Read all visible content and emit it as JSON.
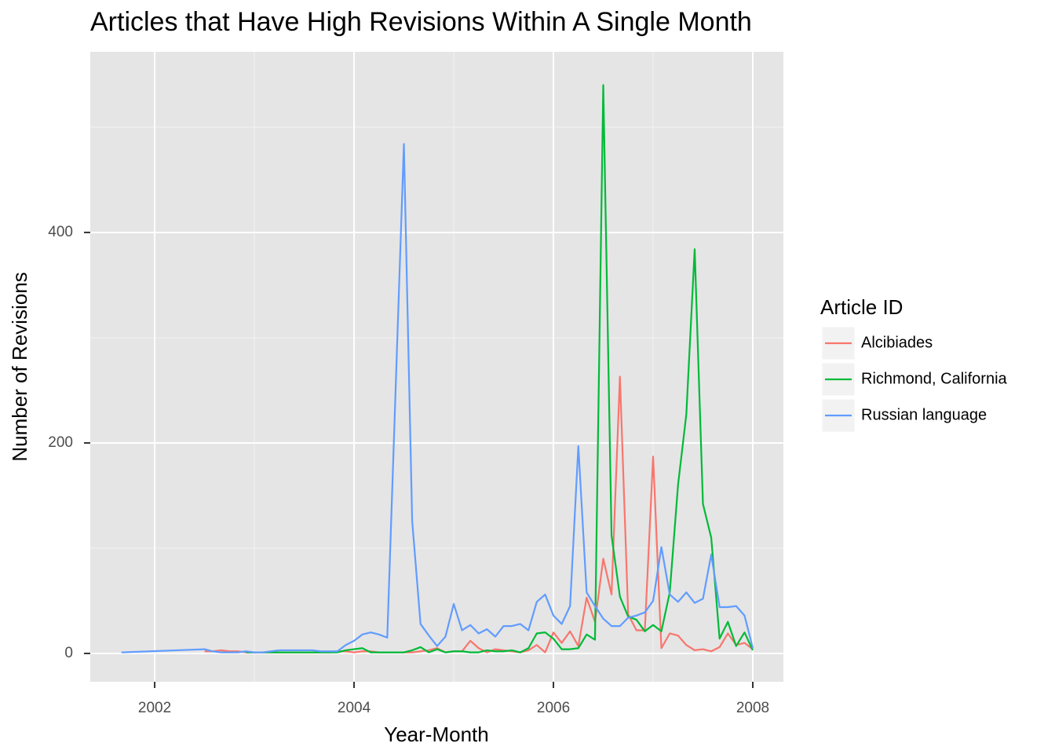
{
  "chart_data": {
    "type": "line",
    "title": "Articles that Have High Revisions Within A Single Month",
    "x_label": "Year-Month",
    "y_label": "Number of Revisions",
    "legend_title": "Article ID",
    "legend_position": "right",
    "grid": true,
    "xlim": [
      2001.354,
      2008.307
    ],
    "xticks": [
      2002,
      2004,
      2006,
      2008
    ],
    "ylim": [
      -26.9,
      571.6
    ],
    "yticks": [
      0,
      200,
      400
    ],
    "series": [
      {
        "name": "Alcibiades",
        "color": "#F8766D",
        "x": [
          2002.5,
          2002.583,
          2002.667,
          2002.75,
          2002.833,
          2002.917,
          2003,
          2003.083,
          2003.167,
          2003.25,
          2003.333,
          2003.417,
          2003.5,
          2003.583,
          2003.667,
          2003.75,
          2003.833,
          2003.917,
          2004,
          2004.083,
          2004.167,
          2004.25,
          2004.333,
          2004.417,
          2004.5,
          2004.583,
          2004.667,
          2004.75,
          2004.833,
          2004.917,
          2005,
          2005.083,
          2005.167,
          2005.25,
          2005.333,
          2005.417,
          2005.5,
          2005.583,
          2005.667,
          2005.75,
          2005.833,
          2005.917,
          2006,
          2006.083,
          2006.167,
          2006.25,
          2006.333,
          2006.417,
          2006.5,
          2006.583,
          2006.667,
          2006.75,
          2006.833,
          2006.917,
          2007,
          2007.083,
          2007.167,
          2007.25,
          2007.333,
          2007.417,
          2007.5,
          2007.583,
          2007.667,
          2007.75,
          2007.833,
          2007.917,
          2008
        ],
        "values": [
          2,
          2,
          3,
          2,
          2,
          1,
          1,
          1,
          1,
          1,
          1,
          1,
          1,
          1,
          1,
          1,
          2,
          2,
          1,
          2,
          2,
          1,
          1,
          1,
          1,
          1,
          2,
          3,
          5,
          1,
          2,
          2,
          12,
          5,
          1,
          4,
          3,
          2,
          1,
          3,
          8,
          1,
          20,
          10,
          21,
          7,
          53,
          30,
          90,
          56,
          263,
          37,
          22,
          22,
          187,
          5,
          19,
          17,
          8,
          3,
          4,
          2,
          6,
          19,
          8,
          10,
          4
        ]
      },
      {
        "name": "Richmond, California",
        "color": "#00BA38",
        "x": [
          2002.917,
          2003,
          2003.083,
          2003.167,
          2003.25,
          2003.333,
          2003.417,
          2003.5,
          2003.583,
          2003.667,
          2003.75,
          2003.833,
          2003.917,
          2004,
          2004.083,
          2004.167,
          2004.25,
          2004.333,
          2004.417,
          2004.5,
          2004.583,
          2004.667,
          2004.75,
          2004.833,
          2004.917,
          2005,
          2005.083,
          2005.167,
          2005.25,
          2005.333,
          2005.417,
          2005.5,
          2005.583,
          2005.667,
          2005.75,
          2005.833,
          2005.917,
          2006,
          2006.083,
          2006.167,
          2006.25,
          2006.333,
          2006.417,
          2006.5,
          2006.583,
          2006.667,
          2006.75,
          2006.833,
          2006.917,
          2007,
          2007.083,
          2007.167,
          2007.25,
          2007.333,
          2007.417,
          2007.5,
          2007.583,
          2007.667,
          2007.75,
          2007.833,
          2007.917,
          2008
        ],
        "values": [
          1,
          1,
          1,
          1,
          1,
          1,
          1,
          1,
          1,
          1,
          1,
          1,
          3,
          4,
          5,
          1,
          1,
          1,
          1,
          1,
          3,
          6,
          1,
          4,
          1,
          2,
          2,
          1,
          1,
          3,
          2,
          2,
          3,
          1,
          5,
          19,
          20,
          14,
          4,
          4,
          5,
          18,
          13,
          540,
          112,
          54,
          35,
          32,
          21,
          27,
          21,
          58,
          160,
          227,
          384,
          142,
          110,
          14,
          30,
          7,
          20,
          3
        ]
      },
      {
        "name": "Russian language",
        "color": "#619CFF",
        "x": [
          2001.667,
          2002.5,
          2002.583,
          2002.667,
          2002.75,
          2002.833,
          2002.917,
          2003,
          2003.083,
          2003.167,
          2003.25,
          2003.333,
          2003.417,
          2003.5,
          2003.583,
          2003.667,
          2003.75,
          2003.833,
          2003.917,
          2004,
          2004.083,
          2004.167,
          2004.25,
          2004.333,
          2004.5,
          2004.583,
          2004.667,
          2004.75,
          2004.833,
          2004.917,
          2005,
          2005.083,
          2005.167,
          2005.25,
          2005.333,
          2005.417,
          2005.5,
          2005.583,
          2005.667,
          2005.75,
          2005.833,
          2005.917,
          2006,
          2006.083,
          2006.167,
          2006.25,
          2006.333,
          2006.417,
          2006.5,
          2006.583,
          2006.667,
          2006.75,
          2006.833,
          2006.917,
          2007,
          2007.083,
          2007.167,
          2007.25,
          2007.333,
          2007.417,
          2007.5,
          2007.583,
          2007.667,
          2007.75,
          2007.833,
          2007.917,
          2008
        ],
        "values": [
          1,
          4,
          2,
          1,
          1,
          1,
          2,
          1,
          1,
          2,
          3,
          3,
          3,
          3,
          3,
          2,
          2,
          2,
          8,
          12,
          18,
          20,
          18,
          15,
          484,
          126,
          28,
          17,
          7,
          16,
          47,
          22,
          27,
          19,
          23,
          16,
          26,
          26,
          28,
          22,
          49,
          56,
          36,
          28,
          45,
          197,
          58,
          45,
          33,
          26,
          26,
          34,
          36,
          39,
          50,
          101,
          56,
          49,
          58,
          48,
          52,
          94,
          44,
          44,
          45,
          36,
          5
        ]
      }
    ]
  }
}
